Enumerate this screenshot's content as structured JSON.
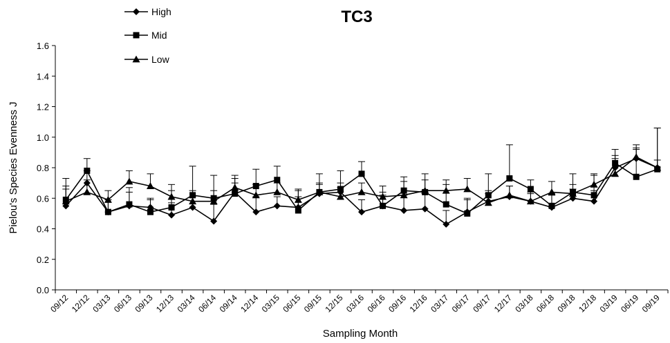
{
  "chart_data": {
    "type": "line",
    "title": "TC3",
    "xlabel": "Sampling Month",
    "ylabel": "Pielou's  Species  Evenness J",
    "ylim": [
      0,
      1.6
    ],
    "yticks": [
      "0.0",
      "0.2",
      "0.4",
      "0.6",
      "0.8",
      "1.0",
      "1.2",
      "1.4",
      "1.6"
    ],
    "grid": false,
    "legend": "top-left",
    "x": [
      "09/12",
      "12/12",
      "03/13",
      "06/13",
      "09/13",
      "12/13",
      "03/14",
      "06/14",
      "09/14",
      "12/14",
      "03/15",
      "06/15",
      "09/15",
      "12/15",
      "03/16",
      "06/16",
      "09/16",
      "12/16",
      "03/17",
      "06/17",
      "09/17",
      "12/17",
      "03/18",
      "06/18",
      "09/18",
      "12/18",
      "03/19",
      "06/19",
      "09/19"
    ],
    "series": [
      {
        "name": "High",
        "marker": "diamond",
        "values": [
          0.55,
          0.7,
          0.51,
          0.55,
          0.54,
          0.49,
          0.54,
          0.45,
          0.64,
          0.51,
          0.55,
          0.54,
          0.63,
          0.64,
          0.51,
          0.55,
          0.52,
          0.53,
          0.43,
          0.51,
          0.58,
          0.61,
          0.58,
          0.54,
          0.6,
          0.58,
          0.8,
          0.86,
          0.8
        ],
        "errors": [
          0.13,
          0.08,
          0.08,
          0.09,
          0.05,
          0.08,
          0.07,
          0.11,
          0.06,
          0.1,
          0.06,
          0.11,
          0.06,
          0.06,
          0.08,
          0.07,
          0.1,
          0.11,
          0.09,
          0.08,
          0.07,
          0.07,
          0.05,
          0.08,
          0.06,
          0.07,
          0.08,
          0.07,
          0.26
        ]
      },
      {
        "name": "Mid",
        "marker": "square",
        "values": [
          0.59,
          0.78,
          0.51,
          0.56,
          0.51,
          0.54,
          0.62,
          0.6,
          0.63,
          0.68,
          0.72,
          0.52,
          0.64,
          0.66,
          0.76,
          0.55,
          0.65,
          0.64,
          0.56,
          0.5,
          0.62,
          0.73,
          0.66,
          0.55,
          0.64,
          0.62,
          0.83,
          0.74,
          0.79
        ],
        "errors": [
          0.14,
          0.08,
          0.08,
          0.11,
          0.09,
          0.11,
          0.19,
          0.15,
          0.12,
          0.11,
          0.09,
          0.09,
          0.12,
          0.12,
          0.08,
          0.09,
          0.09,
          0.12,
          0.13,
          0.1,
          0.14,
          0.22,
          0.06,
          0.08,
          0.12,
          0.13,
          0.09,
          0.18,
          0.27
        ]
      },
      {
        "name": "Low",
        "marker": "triangle",
        "values": [
          0.58,
          0.64,
          0.59,
          0.71,
          0.68,
          0.61,
          0.58,
          0.58,
          0.67,
          0.62,
          0.64,
          0.59,
          0.64,
          0.61,
          0.64,
          0.61,
          0.62,
          0.65,
          0.65,
          0.66,
          0.57,
          0.62,
          0.58,
          0.64,
          0.63,
          0.69,
          0.76,
          0.87,
          0.8
        ],
        "errors": [
          0.08,
          0.08,
          0.06,
          0.07,
          0.08,
          0.08,
          0.07,
          0.07,
          0.06,
          0.07,
          0.06,
          0.07,
          0.06,
          0.06,
          0.06,
          0.07,
          0.09,
          0.07,
          0.07,
          0.07,
          0.06,
          0.06,
          0.06,
          0.07,
          0.06,
          0.07,
          0.1,
          0.08,
          0.05
        ]
      }
    ]
  }
}
